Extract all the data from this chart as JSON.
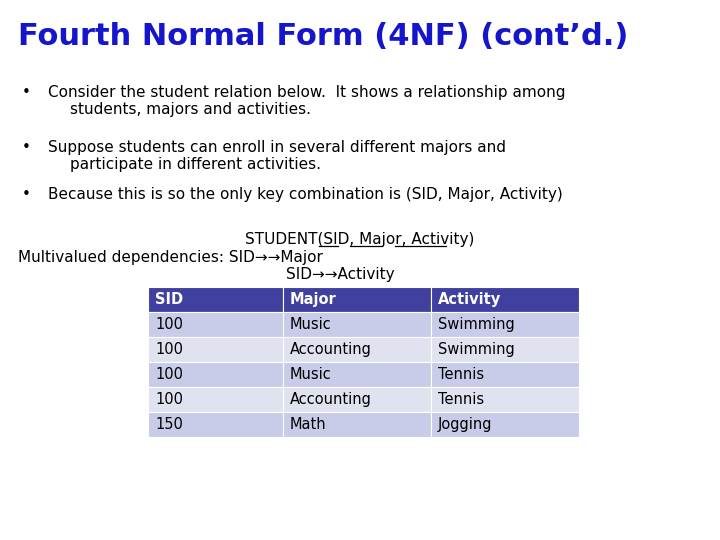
{
  "title": "Fourth Normal Form (4NF) (cont’d.)",
  "title_color": "#1515cc",
  "bg_color": "#ffffff",
  "bullet1_line1": "Consider the student relation below.  It shows a relationship among",
  "bullet1_line2": "students, majors and activities.",
  "bullet2_line1": "Suppose students can enroll in several different majors and",
  "bullet2_line2": "participate in different activities.",
  "bullet3_line1": "Because this is so the only key combination is (SID, Major, Activity)",
  "student_line": "STUDENT(SID, Major, Activity)",
  "mvd_line1": "Multivalued dependencies: SID→→Major",
  "mvd_line2": "SID→→Activity",
  "table_headers": [
    "SID",
    "Major",
    "Activity"
  ],
  "table_rows": [
    [
      "100",
      "Music",
      "Swimming"
    ],
    [
      "100",
      "Accounting",
      "Swimming"
    ],
    [
      "100",
      "Music",
      "Tennis"
    ],
    [
      "100",
      "Accounting",
      "Tennis"
    ],
    [
      "150",
      "Math",
      "Jogging"
    ]
  ],
  "header_bg": "#4040a0",
  "header_fg": "#ffffff",
  "row_bg_odd": "#c8cce8",
  "row_bg_even": "#e0e2f0",
  "table_text_color": "#000000",
  "body_text_color": "#000000",
  "title_fontsize": 22,
  "body_fontsize": 11,
  "table_fontsize": 10.5
}
